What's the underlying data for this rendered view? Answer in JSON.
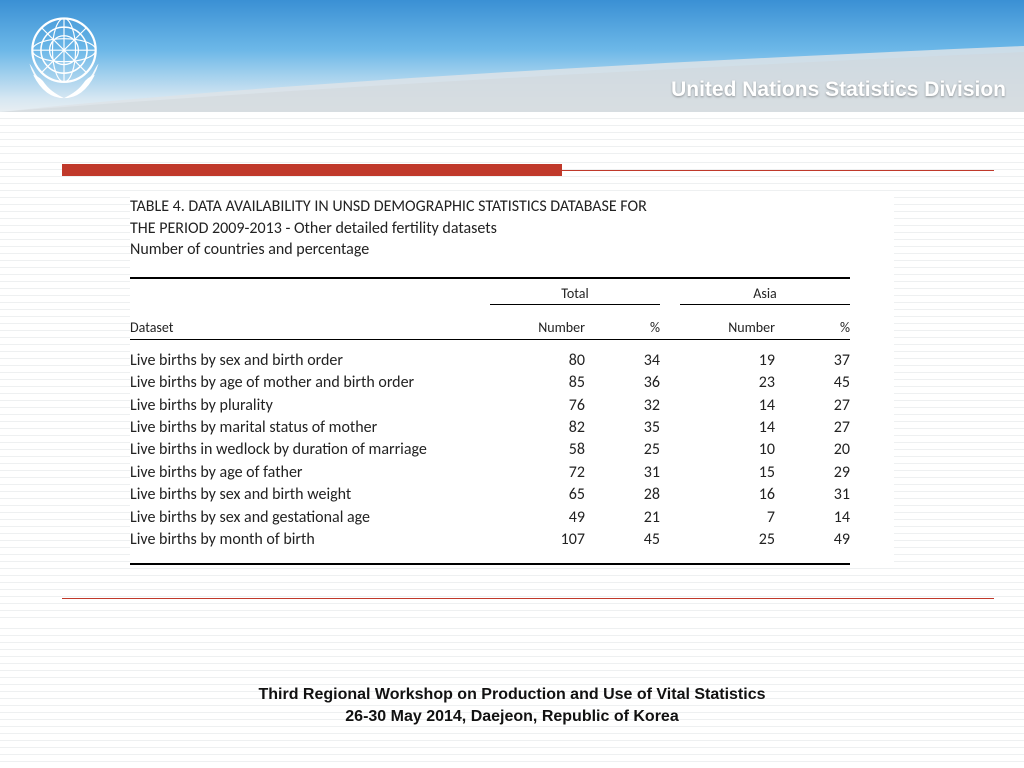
{
  "header": {
    "division": "United Nations Statistics Division",
    "text_color": "#ffffff",
    "gradient_top": "#3a90d4",
    "gradient_mid": "#6db8e8",
    "gradient_low": "#d6e7f2"
  },
  "accent": {
    "red": "#c0392b"
  },
  "caption": {
    "line1": "TABLE 4. DATA AVAILABILITY IN UNSD DEMOGRAPHIC STATISTICS DATABASE FOR",
    "line2": "THE PERIOD 2009-2013 - Other detailed fertility datasets",
    "line3": "Number of countries and percentage"
  },
  "table": {
    "type": "table",
    "dataset_header": "Dataset",
    "groups": [
      "Total",
      "Asia"
    ],
    "subheaders": [
      "Number",
      "%"
    ],
    "column_widths": {
      "dataset": 360,
      "number": 95,
      "percent": 75,
      "gap": 20
    },
    "fontsize_header": 14,
    "fontsize_body": 16,
    "border_color": "#000000",
    "rows": [
      {
        "ds": "Live births by sex and birth order",
        "tn": 80,
        "tp": 34,
        "an": 19,
        "ap": 37
      },
      {
        "ds": "Live births by age of mother and birth order",
        "tn": 85,
        "tp": 36,
        "an": 23,
        "ap": 45
      },
      {
        "ds": "Live births by plurality",
        "tn": 76,
        "tp": 32,
        "an": 14,
        "ap": 27
      },
      {
        "ds": "Live births by marital status of mother",
        "tn": 82,
        "tp": 35,
        "an": 14,
        "ap": 27
      },
      {
        "ds": "Live births in wedlock by duration of marriage",
        "tn": 58,
        "tp": 25,
        "an": 10,
        "ap": 20
      },
      {
        "ds": "Live births by age of father",
        "tn": 72,
        "tp": 31,
        "an": 15,
        "ap": 29
      },
      {
        "ds": "Live births by sex and birth weight",
        "tn": 65,
        "tp": 28,
        "an": 16,
        "ap": 31
      },
      {
        "ds": "Live births by sex and gestational age",
        "tn": 49,
        "tp": 21,
        "an": 7,
        "ap": 14
      },
      {
        "ds": "Live births by month of birth",
        "tn": 107,
        "tp": 45,
        "an": 25,
        "ap": 49
      }
    ]
  },
  "footer": {
    "line1": "Third Regional Workshop on Production and Use of Vital Statistics",
    "line2": "26-30 May 2014, Daejeon, Republic of Korea",
    "fontsize": 16
  }
}
